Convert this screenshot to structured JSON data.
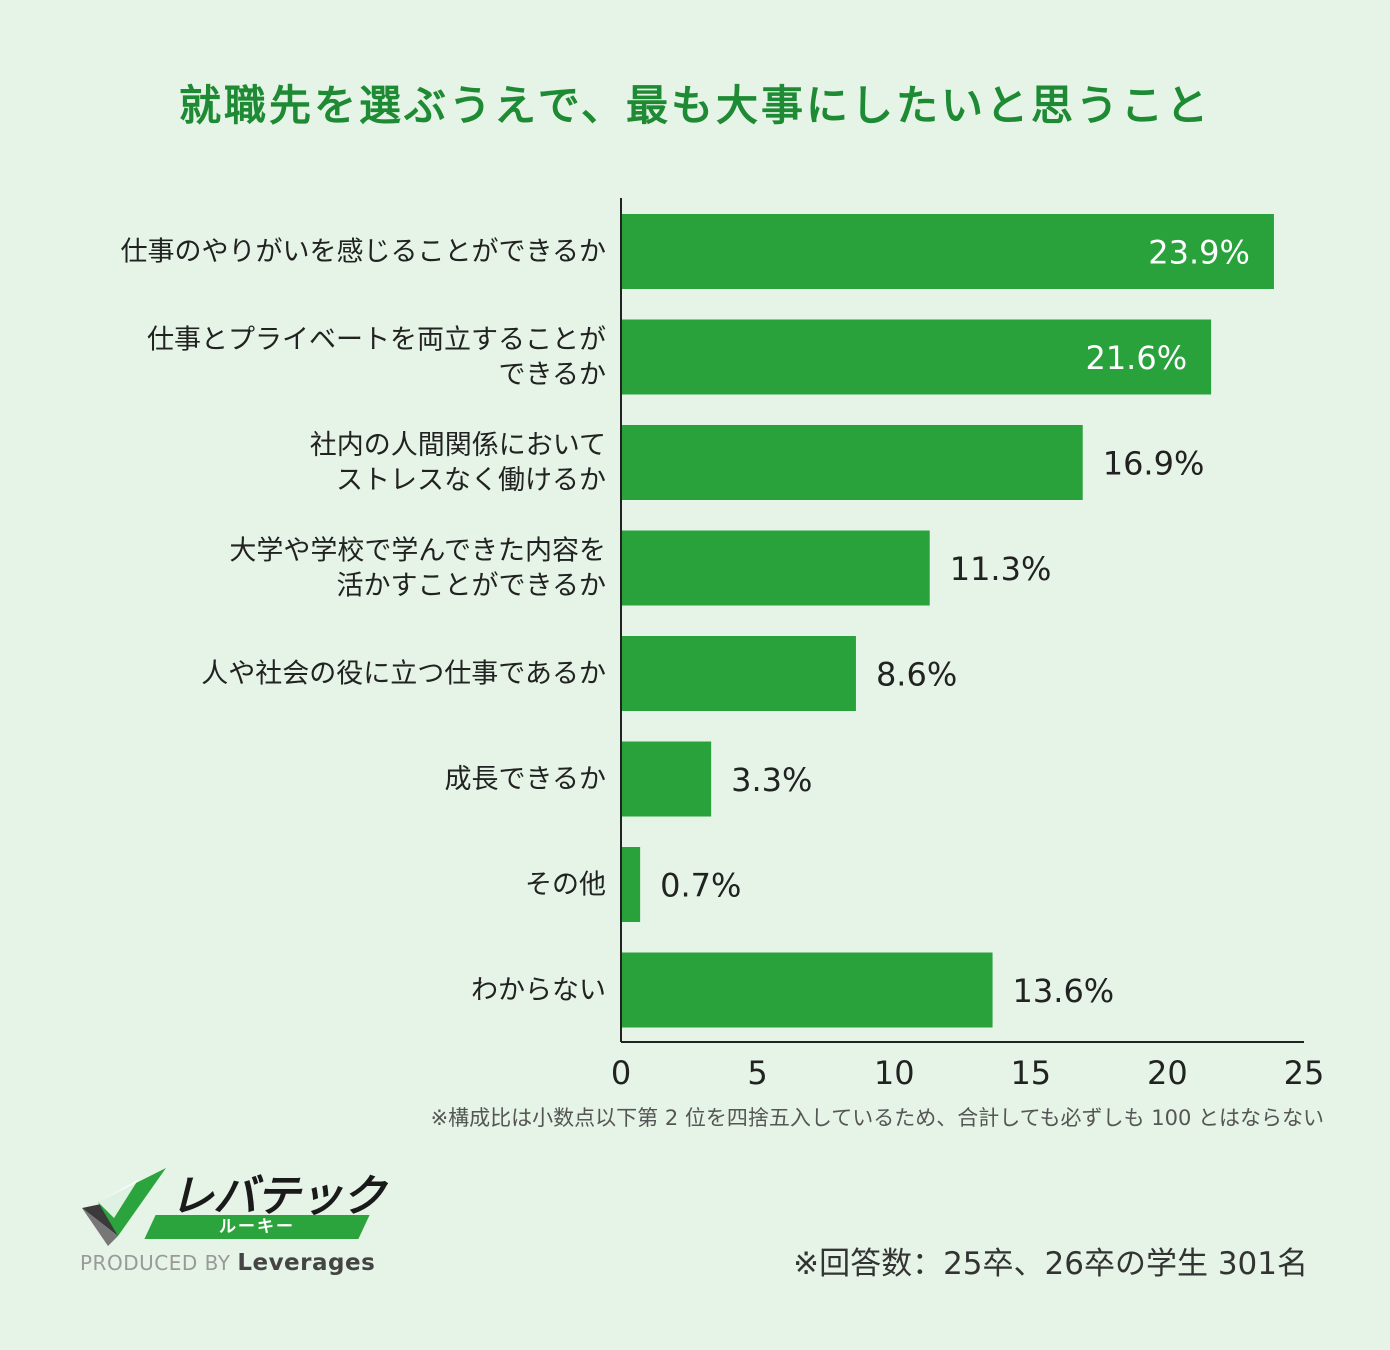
{
  "chart_data": {
    "type": "bar",
    "orientation": "horizontal",
    "title": "就職先を選ぶうえで、最も大事にしたいと思うこと",
    "categories": [
      [
        "仕事のやりがいを感じることができるか"
      ],
      [
        "仕事とプライベートを両立することが",
        "できるか"
      ],
      [
        "社内の人間関係において",
        "ストレスなく働けるか"
      ],
      [
        "大学や学校で学んできた内容を",
        "活かすことができるか"
      ],
      [
        "人や社会の役に立つ仕事であるか"
      ],
      [
        "成長できるか"
      ],
      [
        "その他"
      ],
      [
        "わからない"
      ]
    ],
    "values": [
      23.9,
      21.6,
      16.9,
      11.3,
      8.6,
      3.3,
      0.7,
      13.6
    ],
    "value_labels": [
      "23.9%",
      "21.6%",
      "16.9%",
      "11.3%",
      "8.6%",
      "3.3%",
      "0.7%",
      "13.6%"
    ],
    "xlim": [
      0,
      25
    ],
    "xticks": [
      "0",
      "5",
      "10",
      "15",
      "20",
      "25"
    ],
    "grid": false,
    "bar_color": "#29a23c"
  },
  "footnote": "※構成比は小数点以下第 2 位を四捨五入しているため、合計しても必ずしも 100 とはならない",
  "respondents": "※回答数：25卒、26卒の学生 301名",
  "logo": {
    "name": "レバテック",
    "sub": "ルーキー",
    "produced_by": "PRODUCED BY",
    "company": "Leverages"
  },
  "colors": {
    "title": "#1e8a34",
    "background": "#e5f4e6",
    "bar": "#29a23c"
  }
}
